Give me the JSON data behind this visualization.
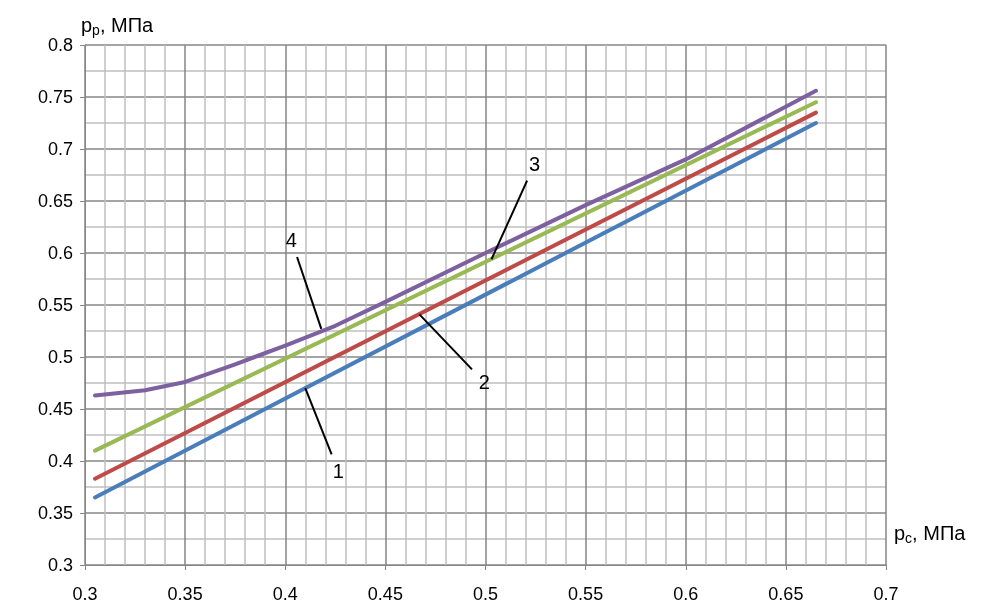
{
  "chart_data": {
    "type": "line",
    "xlabel": "p$_{с}$, МПа",
    "ylabel": "p$_{р}$, МПа",
    "xlim": [
      0.3,
      0.7
    ],
    "xticks": [
      0.3,
      0.35,
      0.4,
      0.45,
      0.5,
      0.55,
      0.6,
      0.65,
      0.7
    ],
    "ylim": [
      0.3,
      0.8
    ],
    "yticks": [
      0.3,
      0.35,
      0.4,
      0.45,
      0.5,
      0.55,
      0.6,
      0.65,
      0.7,
      0.75,
      0.8
    ],
    "grid": true,
    "marker": "none",
    "line_style": "solid",
    "series": [
      {
        "color": "#4a7ebb",
        "x": [
          0.305,
          0.665
        ],
        "values": [
          0.365,
          0.725
        ]
      },
      {
        "color": "#be4b48",
        "x": [
          0.305,
          0.665
        ],
        "values": [
          0.383,
          0.735
        ]
      },
      {
        "color": "#98b954",
        "x": [
          0.305,
          0.665
        ],
        "values": [
          0.41,
          0.745
        ]
      },
      {
        "color": "#7d60a0",
        "x": [
          0.305,
          0.33,
          0.35,
          0.375,
          0.4,
          0.425,
          0.45,
          0.5,
          0.55,
          0.6,
          0.665
        ],
        "values": [
          0.463,
          0.468,
          0.476,
          0.493,
          0.511,
          0.53,
          0.553,
          0.6,
          0.646,
          0.69,
          0.756
        ]
      }
    ],
    "annotations": [
      {
        "text": "1",
        "x": 0.41,
        "y": 0.47
      },
      {
        "text": "2",
        "x": 0.467,
        "y": 0.541
      },
      {
        "text": "3",
        "x": 0.503,
        "y": 0.594
      },
      {
        "text": "4",
        "x": 0.418,
        "y": 0.527
      }
    ]
  }
}
